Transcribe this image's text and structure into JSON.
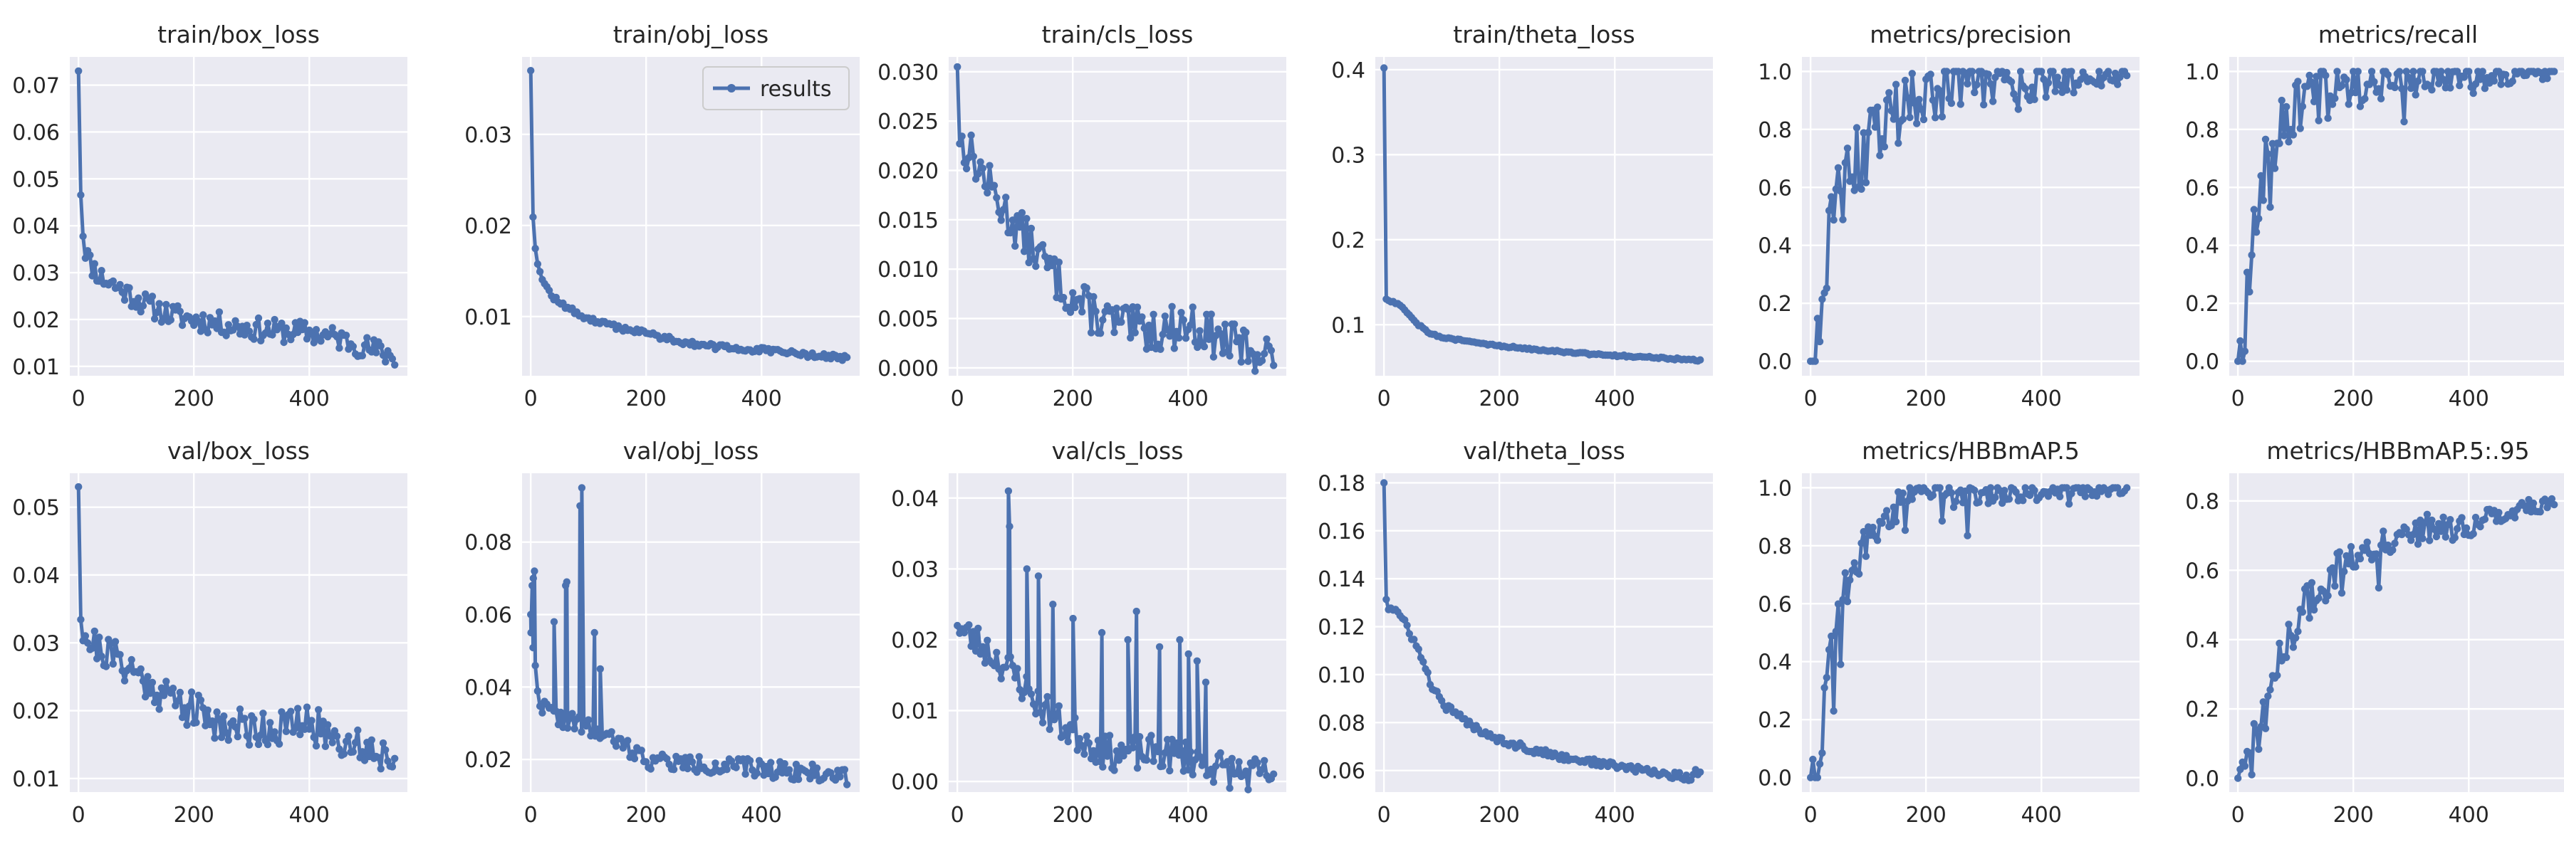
{
  "legend": {
    "label": "results"
  },
  "colors": {
    "series": "#4c72b0",
    "panel": "#eaeaf2",
    "grid": "#ffffff"
  },
  "chart_data": [
    {
      "type": "line",
      "title": "train/box_loss",
      "xlim": [
        -15,
        570
      ],
      "ylim": [
        0.008,
        0.076
      ],
      "xticks": [
        0,
        200,
        400
      ],
      "xtick_labels": [
        "0",
        "200",
        "400"
      ],
      "yticks": [
        0.01,
        0.02,
        0.03,
        0.04,
        0.05,
        0.06,
        0.07
      ],
      "ytick_labels": [
        "0.01",
        "0.02",
        "0.03",
        "0.04",
        "0.05",
        "0.06",
        "0.07"
      ],
      "shape": "decay",
      "noise": 0.0025,
      "seed": 11,
      "grid": true,
      "series": [
        {
          "x": [
            0,
            3,
            6,
            10,
            20,
            40,
            80,
            120,
            160,
            200,
            250,
            300,
            350,
            400,
            450,
            500,
            550
          ],
          "y": [
            0.073,
            0.051,
            0.041,
            0.036,
            0.032,
            0.029,
            0.026,
            0.023,
            0.021,
            0.02,
            0.019,
            0.018,
            0.0175,
            0.0172,
            0.016,
            0.014,
            0.012
          ]
        }
      ]
    },
    {
      "type": "line",
      "title": "train/obj_loss",
      "xlim": [
        -15,
        570
      ],
      "ylim": [
        0.0035,
        0.0385
      ],
      "xticks": [
        0,
        200,
        400
      ],
      "xtick_labels": [
        "0",
        "200",
        "400"
      ],
      "yticks": [
        0.01,
        0.02,
        0.03
      ],
      "ytick_labels": [
        "0.01",
        "0.02",
        "0.03"
      ],
      "shape": "decay",
      "noise": 0.0003,
      "seed": 12,
      "grid": true,
      "legend": true,
      "series": [
        {
          "x": [
            0,
            3,
            6,
            10,
            20,
            40,
            80,
            120,
            160,
            200,
            250,
            300,
            350,
            400,
            450,
            500,
            550
          ],
          "y": [
            0.037,
            0.022,
            0.019,
            0.0165,
            0.014,
            0.012,
            0.0103,
            0.0093,
            0.0087,
            0.0082,
            0.0074,
            0.0068,
            0.0065,
            0.0063,
            0.006,
            0.0057,
            0.0054
          ]
        }
      ]
    },
    {
      "type": "line",
      "title": "train/cls_loss",
      "xlim": [
        -15,
        570
      ],
      "ylim": [
        -0.0008,
        0.0315
      ],
      "xticks": [
        0,
        200,
        400
      ],
      "xtick_labels": [
        "0",
        "200",
        "400"
      ],
      "yticks": [
        0.0,
        0.005,
        0.01,
        0.015,
        0.02,
        0.025,
        0.03
      ],
      "ytick_labels": [
        "0.000",
        "0.005",
        "0.010",
        "0.015",
        "0.020",
        "0.025",
        "0.030"
      ],
      "shape": "decay",
      "noise": 0.0022,
      "seed": 13,
      "grid": true,
      "series": [
        {
          "x": [
            0,
            3,
            8,
            20,
            40,
            80,
            120,
            160,
            200,
            250,
            300,
            350,
            400,
            450,
            500,
            550
          ],
          "y": [
            0.0305,
            0.023,
            0.0225,
            0.022,
            0.02,
            0.016,
            0.013,
            0.01,
            0.007,
            0.005,
            0.004,
            0.0038,
            0.0045,
            0.003,
            0.002,
            0.0015
          ]
        }
      ]
    },
    {
      "type": "line",
      "title": "train/theta_loss",
      "xlim": [
        -15,
        570
      ],
      "ylim": [
        0.04,
        0.415
      ],
      "xticks": [
        0,
        200,
        400
      ],
      "xtick_labels": [
        "0",
        "200",
        "400"
      ],
      "yticks": [
        0.1,
        0.2,
        0.3,
        0.4
      ],
      "ytick_labels": [
        "0.1",
        "0.2",
        "0.3",
        "0.4"
      ],
      "shape": "decay",
      "noise": 0.0012,
      "seed": 14,
      "grid": true,
      "series": [
        {
          "x": [
            0,
            2,
            4,
            10,
            25,
            40,
            60,
            80,
            100,
            150,
            200,
            250,
            300,
            350,
            400,
            450,
            500,
            550
          ],
          "y": [
            0.402,
            0.165,
            0.13,
            0.128,
            0.125,
            0.115,
            0.1,
            0.09,
            0.085,
            0.08,
            0.075,
            0.072,
            0.069,
            0.066,
            0.064,
            0.062,
            0.06,
            0.058
          ]
        }
      ]
    },
    {
      "type": "line",
      "title": "metrics/precision",
      "xlim": [
        -15,
        570
      ],
      "ylim": [
        -0.05,
        1.05
      ],
      "xticks": [
        0,
        200,
        400
      ],
      "xtick_labels": [
        "0",
        "200",
        "400"
      ],
      "yticks": [
        0.0,
        0.2,
        0.4,
        0.6,
        0.8,
        1.0
      ],
      "ytick_labels": [
        "0.0",
        "0.2",
        "0.4",
        "0.6",
        "0.8",
        "1.0"
      ],
      "shape": "rise",
      "noise": 0.09,
      "seed": 15,
      "grid": true,
      "clip": [
        0,
        1
      ],
      "series": [
        {
          "x": [
            0,
            10,
            15,
            25,
            40,
            60,
            80,
            100,
            130,
            160,
            200,
            250,
            300,
            400,
            450,
            500,
            550
          ],
          "y": [
            0.0,
            0.0,
            0.15,
            0.35,
            0.5,
            0.6,
            0.68,
            0.75,
            0.82,
            0.88,
            0.92,
            0.95,
            0.96,
            0.97,
            0.98,
            0.985,
            0.985
          ]
        }
      ]
    },
    {
      "type": "line",
      "title": "metrics/recall",
      "xlim": [
        -15,
        570
      ],
      "ylim": [
        -0.05,
        1.05
      ],
      "xticks": [
        0,
        200,
        400
      ],
      "xtick_labels": [
        "0",
        "200",
        "400"
      ],
      "yticks": [
        0.0,
        0.2,
        0.4,
        0.6,
        0.8,
        1.0
      ],
      "ytick_labels": [
        "0.0",
        "0.2",
        "0.4",
        "0.6",
        "0.8",
        "1.0"
      ],
      "shape": "rise",
      "noise": 0.08,
      "seed": 16,
      "grid": true,
      "clip": [
        0,
        1
      ],
      "series": [
        {
          "x": [
            0,
            10,
            15,
            25,
            40,
            60,
            80,
            100,
            130,
            160,
            200,
            250,
            300,
            400,
            450,
            500,
            550
          ],
          "y": [
            0.0,
            0.0,
            0.25,
            0.45,
            0.62,
            0.75,
            0.82,
            0.86,
            0.9,
            0.93,
            0.96,
            0.98,
            0.985,
            0.99,
            0.995,
            0.997,
            0.998
          ]
        }
      ]
    },
    {
      "type": "line",
      "title": "val/box_loss",
      "xlim": [
        -15,
        570
      ],
      "ylim": [
        0.008,
        0.055
      ],
      "xticks": [
        0,
        200,
        400
      ],
      "xtick_labels": [
        "0",
        "200",
        "400"
      ],
      "yticks": [
        0.01,
        0.02,
        0.03,
        0.04,
        0.05
      ],
      "ytick_labels": [
        "0.01",
        "0.02",
        "0.03",
        "0.04",
        "0.05"
      ],
      "shape": "decay",
      "noise": 0.0028,
      "seed": 21,
      "grid": true,
      "series": [
        {
          "x": [
            0,
            3,
            8,
            20,
            40,
            80,
            120,
            160,
            200,
            250,
            300,
            350,
            400,
            450,
            500,
            550
          ],
          "y": [
            0.053,
            0.036,
            0.032,
            0.03,
            0.029,
            0.027,
            0.024,
            0.022,
            0.02,
            0.018,
            0.0175,
            0.0175,
            0.018,
            0.016,
            0.0145,
            0.013
          ]
        }
      ]
    },
    {
      "type": "line",
      "title": "val/obj_loss",
      "xlim": [
        -15,
        570
      ],
      "ylim": [
        0.011,
        0.099
      ],
      "xticks": [
        0,
        200,
        400
      ],
      "xtick_labels": [
        "0",
        "200",
        "400"
      ],
      "yticks": [
        0.02,
        0.04,
        0.06,
        0.08
      ],
      "ytick_labels": [
        "0.02",
        "0.04",
        "0.06",
        "0.08"
      ],
      "shape": "decay",
      "noise": 0.0025,
      "seed": 22,
      "grid": true,
      "spikes": [
        [
          0,
          0.055
        ],
        [
          2,
          0.068
        ],
        [
          4,
          0.07
        ],
        [
          6,
          0.072
        ],
        [
          40,
          0.058
        ],
        [
          60,
          0.068
        ],
        [
          62,
          0.069
        ],
        [
          85,
          0.09
        ],
        [
          88,
          0.095
        ],
        [
          110,
          0.055
        ],
        [
          120,
          0.045
        ]
      ],
      "series": [
        {
          "x": [
            0,
            10,
            20,
            40,
            80,
            120,
            160,
            200,
            250,
            300,
            350,
            400,
            450,
            500,
            550
          ],
          "y": [
            0.06,
            0.04,
            0.035,
            0.032,
            0.03,
            0.027,
            0.024,
            0.02,
            0.019,
            0.0185,
            0.018,
            0.0175,
            0.017,
            0.016,
            0.0155
          ]
        }
      ]
    },
    {
      "type": "line",
      "title": "val/cls_loss",
      "xlim": [
        -15,
        570
      ],
      "ylim": [
        -0.0015,
        0.0435
      ],
      "xticks": [
        0,
        200,
        400
      ],
      "xtick_labels": [
        "0",
        "200",
        "400"
      ],
      "yticks": [
        0.0,
        0.01,
        0.02,
        0.03,
        0.04
      ],
      "ytick_labels": [
        "0.00",
        "0.01",
        "0.02",
        "0.03",
        "0.04"
      ],
      "shape": "decay",
      "noise": 0.0025,
      "seed": 23,
      "grid": true,
      "spikes": [
        [
          88,
          0.041
        ],
        [
          90,
          0.036
        ],
        [
          120,
          0.03
        ],
        [
          140,
          0.029
        ],
        [
          165,
          0.025
        ],
        [
          200,
          0.023
        ],
        [
          250,
          0.021
        ],
        [
          295,
          0.02
        ],
        [
          310,
          0.024
        ],
        [
          350,
          0.019
        ],
        [
          385,
          0.02
        ],
        [
          400,
          0.018
        ],
        [
          415,
          0.017
        ],
        [
          430,
          0.014
        ]
      ],
      "series": [
        {
          "x": [
            0,
            10,
            30,
            60,
            100,
            140,
            180,
            220,
            260,
            300,
            350,
            400,
            450,
            500,
            550
          ],
          "y": [
            0.022,
            0.021,
            0.02,
            0.018,
            0.015,
            0.011,
            0.008,
            0.006,
            0.004,
            0.004,
            0.004,
            0.0035,
            0.002,
            0.001,
            0.0008
          ]
        }
      ]
    },
    {
      "type": "line",
      "title": "val/theta_loss",
      "xlim": [
        -15,
        570
      ],
      "ylim": [
        0.051,
        0.184
      ],
      "xticks": [
        0,
        200,
        400
      ],
      "xtick_labels": [
        "0",
        "200",
        "400"
      ],
      "yticks": [
        0.06,
        0.08,
        0.1,
        0.12,
        0.14,
        0.16,
        0.18
      ],
      "ytick_labels": [
        "0.06",
        "0.08",
        "0.10",
        "0.12",
        "0.14",
        "0.16",
        "0.18"
      ],
      "shape": "decay",
      "noise": 0.0015,
      "seed": 24,
      "grid": true,
      "series": [
        {
          "x": [
            0,
            2,
            6,
            20,
            40,
            60,
            80,
            100,
            150,
            200,
            250,
            300,
            350,
            400,
            450,
            500,
            530,
            550
          ],
          "y": [
            0.18,
            0.135,
            0.128,
            0.127,
            0.12,
            0.11,
            0.097,
            0.088,
            0.079,
            0.073,
            0.069,
            0.066,
            0.064,
            0.062,
            0.06,
            0.058,
            0.057,
            0.061
          ]
        }
      ]
    },
    {
      "type": "line",
      "title": "metrics/HBBmAP.5",
      "xlim": [
        -15,
        570
      ],
      "ylim": [
        -0.05,
        1.05
      ],
      "xticks": [
        0,
        200,
        400
      ],
      "xtick_labels": [
        "0",
        "200",
        "400"
      ],
      "yticks": [
        0.0,
        0.2,
        0.4,
        0.6,
        0.8,
        1.0
      ],
      "ytick_labels": [
        "0.0",
        "0.2",
        "0.4",
        "0.6",
        "0.8",
        "1.0"
      ],
      "shape": "rise",
      "noise": 0.045,
      "seed": 25,
      "grid": true,
      "clip": [
        0,
        1
      ],
      "series": [
        {
          "x": [
            0,
            10,
            15,
            25,
            40,
            60,
            80,
            100,
            130,
            160,
            200,
            250,
            300,
            400,
            450,
            500,
            550
          ],
          "y": [
            0.0,
            0.0,
            0.1,
            0.3,
            0.5,
            0.65,
            0.75,
            0.82,
            0.9,
            0.95,
            0.97,
            0.98,
            0.985,
            0.99,
            0.992,
            0.994,
            0.995
          ]
        }
      ]
    },
    {
      "type": "line",
      "title": "metrics/HBBmAP.5:.95",
      "xlim": [
        -15,
        570
      ],
      "ylim": [
        -0.04,
        0.88
      ],
      "xticks": [
        0,
        200,
        400
      ],
      "xtick_labels": [
        "0",
        "200",
        "400"
      ],
      "yticks": [
        0.0,
        0.2,
        0.4,
        0.6,
        0.8
      ],
      "ytick_labels": [
        "0.0",
        "0.2",
        "0.4",
        "0.6",
        "0.8"
      ],
      "shape": "rise",
      "noise": 0.045,
      "seed": 26,
      "grid": true,
      "clip": [
        0,
        0.86
      ],
      "series": [
        {
          "x": [
            0,
            10,
            20,
            40,
            60,
            80,
            100,
            130,
            160,
            200,
            250,
            300,
            350,
            400,
            450,
            500,
            550
          ],
          "y": [
            0.0,
            0.02,
            0.06,
            0.15,
            0.28,
            0.38,
            0.45,
            0.52,
            0.58,
            0.64,
            0.68,
            0.71,
            0.73,
            0.72,
            0.76,
            0.78,
            0.79
          ]
        }
      ]
    }
  ]
}
